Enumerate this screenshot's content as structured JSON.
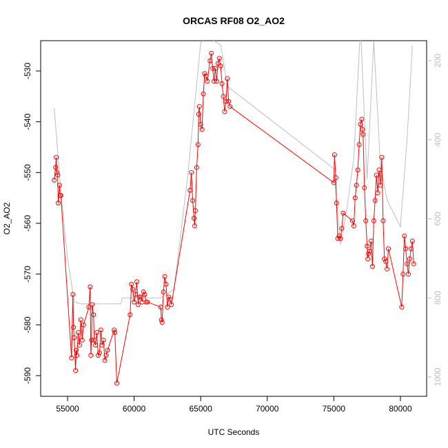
{
  "chart_data": {
    "type": "line",
    "title": "ORCAS RF08 O2_AO2",
    "xlabel": "UTC Seconds",
    "ylabel": "O2_AO2",
    "xlim": [
      52980,
      81970
    ],
    "xticks": [
      55000,
      60000,
      65000,
      70000,
      75000,
      80000
    ],
    "ylim": [
      -594.07,
      -524.03
    ],
    "yticks": [
      -590,
      -580,
      -570,
      -560,
      -550,
      -540,
      -530
    ],
    "y2lim": [
      1048.8,
      149.5
    ],
    "y2ticks": [
      200,
      400,
      600,
      800,
      1000
    ],
    "series": [
      {
        "color": "#ff0000",
        "markers": true,
        "x": [
          54000,
          54100,
          54150,
          54200,
          54250,
          54300,
          54400,
          54450,
          54500,
          55300,
          55400,
          55450,
          55500,
          55600,
          55650,
          55700,
          55800,
          55900,
          56000,
          56100,
          56200,
          56600,
          56700,
          56750,
          56800,
          56850,
          56950,
          57000,
          57100,
          57200,
          57300,
          57400,
          57500,
          57600,
          57700,
          57800,
          57900,
          58000,
          58500,
          58550,
          58700,
          59700,
          59800,
          59900,
          60000,
          60100,
          60200,
          60300,
          60400,
          60500,
          60600,
          60700,
          60800,
          60900,
          61000,
          62000,
          62050,
          62100,
          62200,
          62300,
          62400,
          62500,
          62600,
          62700,
          62800,
          64200,
          64300,
          64400,
          64500,
          64550,
          64600,
          64700,
          64800,
          64850,
          64900,
          65000,
          65100,
          65200,
          65300,
          65400,
          65500,
          65700,
          65800,
          65900,
          66000,
          66100,
          66200,
          66300,
          66400,
          66500,
          66600,
          66700,
          66800,
          66900,
          67000,
          67100,
          67200,
          75000,
          75050,
          75150,
          75200,
          75300,
          75400,
          75500,
          75600,
          75700,
          76400,
          76500,
          76600,
          76700,
          76800,
          76900,
          77000,
          77100,
          77150,
          77200,
          77300,
          77400,
          77500,
          77550,
          77600,
          77700,
          77800,
          77900,
          78000,
          78100,
          78200,
          78300,
          78400,
          78500,
          78600,
          78700,
          78800,
          78900,
          79000,
          79100,
          80100,
          80200,
          80300,
          80400,
          80500,
          80600,
          80700,
          80800,
          80900,
          81000
        ],
        "values": [
          -551.5,
          -549,
          -547,
          -550,
          -550.5,
          -556,
          -552.5,
          -554.5,
          -554.5,
          -586.5,
          -574,
          -580.5,
          -582.5,
          -589,
          -585,
          -586,
          -581.5,
          -584,
          -579,
          -583,
          -580,
          -576.5,
          -572.5,
          -586,
          -583,
          -576,
          -578,
          -583,
          -584,
          -581.5,
          -586,
          -585.5,
          -581,
          -584,
          -583,
          -587,
          -586,
          -585,
          -581,
          -581.5,
          -591.5,
          -578,
          -572,
          -573,
          -575.5,
          -574,
          -571.5,
          -576,
          -574.5,
          -574.5,
          -575.5,
          -573.5,
          -574,
          -575.5,
          -575.5,
          -576.5,
          -579,
          -579.5,
          -573.5,
          -570.5,
          -572,
          -576.5,
          -574.5,
          -575,
          -576,
          -553.5,
          -550,
          -555.5,
          -559,
          -560.5,
          -557.5,
          -549,
          -544.5,
          -538.5,
          -537,
          -540.5,
          -541.5,
          -534.5,
          -530.5,
          -531,
          -532,
          -528,
          -526.5,
          -529.5,
          -532,
          -529.5,
          -532,
          -528.5,
          -527.5,
          -529,
          -532.5,
          -535,
          -538,
          -536,
          -531.5,
          -536,
          -537,
          -552,
          -546.5,
          -551,
          -556,
          -563,
          -562.5,
          -563,
          -561,
          -558,
          -559.5,
          -560.5,
          -555,
          -552.5,
          -549.5,
          -544.5,
          -540.5,
          -539.5,
          -541.5,
          -542.5,
          -553,
          -559.5,
          -564.5,
          -567,
          -566,
          -565.5,
          -563.5,
          -568.5,
          -559.5,
          -555.5,
          -550.5,
          -554,
          -549.5,
          -552.5,
          -547,
          -559.5,
          -567,
          -567.5,
          -569,
          -565,
          -576.5,
          -570,
          -562.5,
          -565,
          -568,
          -570,
          -567,
          -565,
          -563.5,
          -568
        ]
      },
      {
        "color": "#bebebe",
        "axis": "y2",
        "markers": false,
        "x": [
          54000,
          54500,
          55000,
          55500,
          56000,
          59000,
          59100,
          60000,
          62000,
          63000,
          64000,
          65000,
          65500,
          66000,
          66500,
          67000,
          75000,
          75500,
          76000,
          76500,
          77000,
          77500,
          78000,
          78500,
          79000,
          80000,
          80500,
          80900
        ],
        "values": [
          320,
          534,
          700,
          810,
          815,
          815,
          800,
          800,
          800,
          778,
          500,
          155,
          140,
          150,
          160,
          265,
          473,
          665,
          570,
          447,
          115,
          500,
          150,
          465,
          552,
          620,
          400,
          162
        ]
      }
    ]
  }
}
